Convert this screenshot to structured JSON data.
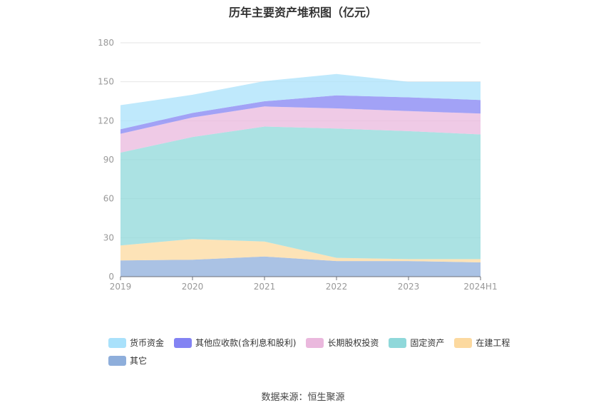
{
  "chart_data": {
    "type": "area",
    "title": "历年主要资产堆积图（亿元）",
    "source": "数据来源：恒生聚源",
    "categories": [
      "2019",
      "2020",
      "2021",
      "2022",
      "2023",
      "2024H1"
    ],
    "ylim": [
      0,
      180
    ],
    "yticks": [
      "0",
      "30",
      "60",
      "90",
      "120",
      "150",
      "180"
    ],
    "grid": true,
    "legend_position": "bottom",
    "series": [
      {
        "name": "其它",
        "color": "#8eaedb",
        "values": [
          12.5,
          13.0,
          15.5,
          12.0,
          12.0,
          11.0
        ]
      },
      {
        "name": "在建工程",
        "color": "#fcd99f",
        "values": [
          11.5,
          16.0,
          11.5,
          2.5,
          1.5,
          2.5
        ]
      },
      {
        "name": "固定资产",
        "color": "#8fd8da",
        "values": [
          71.5,
          78.5,
          88.5,
          99.5,
          98.5,
          96.0
        ]
      },
      {
        "name": "长期股权投资",
        "color": "#eab8dd",
        "values": [
          14.5,
          15.0,
          15.5,
          15.5,
          15.5,
          16.0
        ]
      },
      {
        "name": "其他应收款(含利息和股利)",
        "color": "#8383f3",
        "values": [
          3.5,
          3.5,
          4.0,
          10.0,
          10.5,
          10.5
        ]
      },
      {
        "name": "货币资金",
        "color": "#a9e1fb",
        "values": [
          18.5,
          14.0,
          15.5,
          16.5,
          12.0,
          14.0
        ]
      }
    ],
    "legend_order": [
      "货币资金",
      "其他应收款(含利息和股利)",
      "长期股权投资",
      "固定资产",
      "在建工程",
      "其它"
    ]
  }
}
